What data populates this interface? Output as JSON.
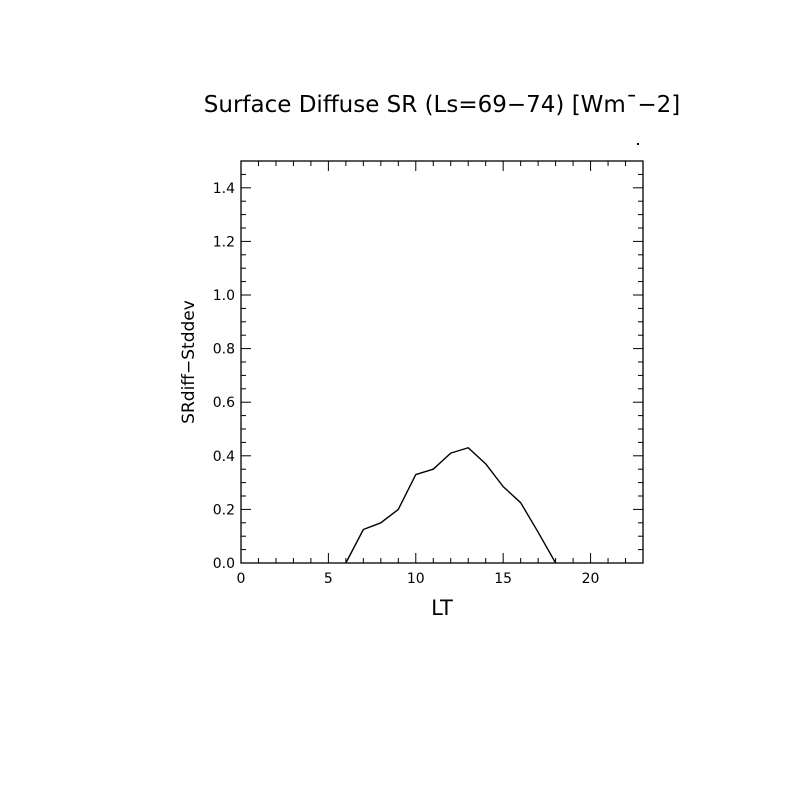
{
  "chart_data": {
    "type": "line",
    "title": "Surface Diffuse SR (Ls=69-74) [Wm^-2]",
    "title_display": "Surface Diffuse SR (Ls=69−74) [Wm¯−2]",
    "xlabel": "LT",
    "ylabel": "SRdiff−Stddev",
    "xlim": [
      0,
      23
    ],
    "ylim": [
      0,
      1.5
    ],
    "x_ticks": [
      0,
      5,
      10,
      15,
      20
    ],
    "x_tick_labels": [
      "0",
      "5",
      "10",
      "15",
      "20"
    ],
    "y_ticks": [
      0.0,
      0.2,
      0.4,
      0.6,
      0.8,
      1.0,
      1.2,
      1.4
    ],
    "y_tick_labels": [
      "0.0",
      "0.2",
      "0.4",
      "0.6",
      "0.8",
      "1.0",
      "1.2",
      "1.4"
    ],
    "grid": false,
    "series": [
      {
        "color": "#000000",
        "x": [
          6,
          7,
          8,
          9,
          10,
          11,
          12,
          13,
          14,
          15,
          16,
          17,
          18
        ],
        "y": [
          0.0,
          0.125,
          0.15,
          0.2,
          0.33,
          0.35,
          0.41,
          0.43,
          0.37,
          0.285,
          0.225,
          0.115,
          0.0
        ]
      }
    ]
  }
}
